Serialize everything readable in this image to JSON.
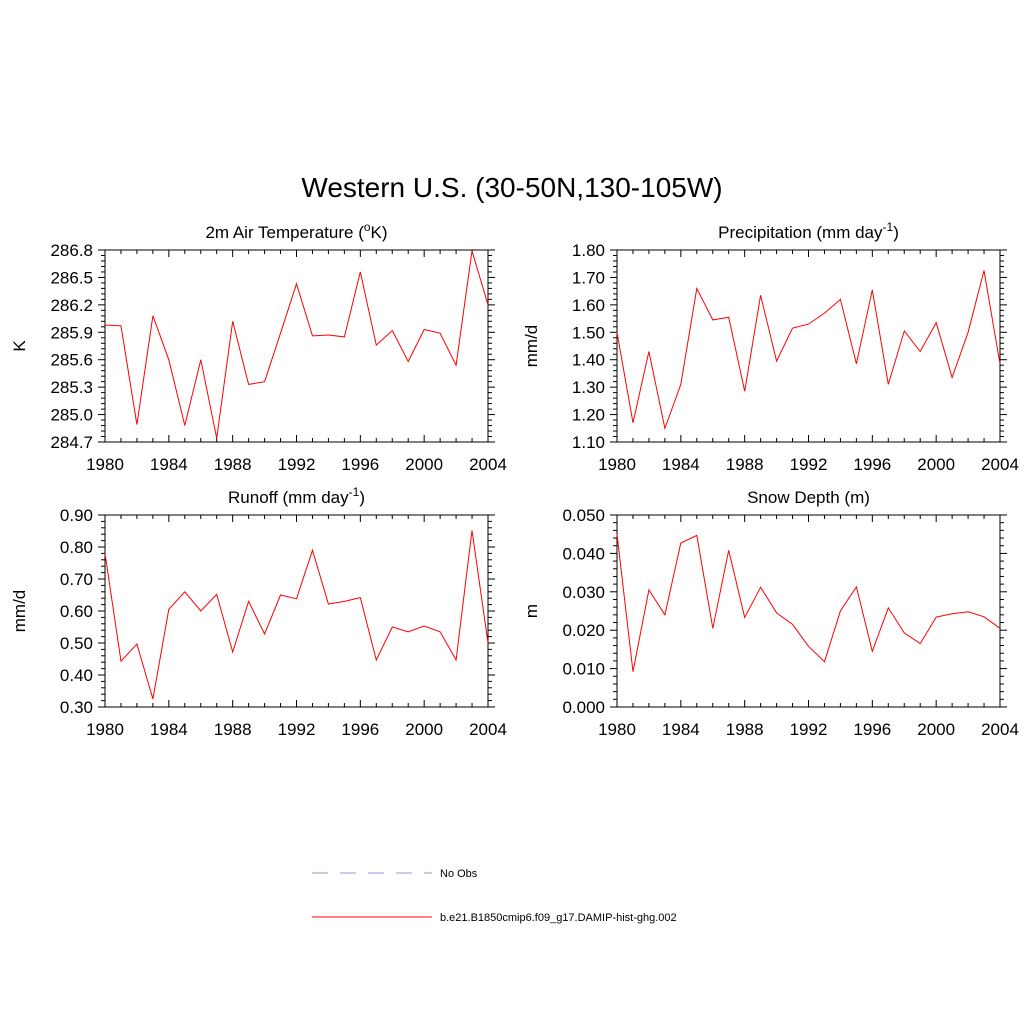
{
  "figure": {
    "title": "Western U.S. (30-50N,130-105W)"
  },
  "legend": [
    {
      "label": "No Obs",
      "color": "#aaaaee",
      "dash": "dashed"
    },
    {
      "label": "b.e21.B1850cmip6.f09_g17.DAMIP-hist-ghg.002",
      "color": "#ff0000",
      "dash": "solid"
    }
  ],
  "chart_data": [
    {
      "type": "line",
      "title_main": "2m Air Temperature (",
      "title_sup": "o",
      "title_rest": "K)",
      "ylabel": "K",
      "xlim": [
        1980,
        2004
      ],
      "ylim": [
        284.7,
        286.8
      ],
      "xticks": [
        "1980",
        "1984",
        "1988",
        "1992",
        "1996",
        "2000",
        "2004"
      ],
      "yticks": [
        "284.7",
        "285.0",
        "285.3",
        "285.6",
        "285.9",
        "286.2",
        "286.5",
        "286.8"
      ],
      "series": [
        {
          "color": "#ff0000",
          "x": [
            1980,
            1981,
            1982,
            1983,
            1984,
            1985,
            1986,
            1987,
            1988,
            1989,
            1990,
            1991,
            1992,
            1993,
            1994,
            1995,
            1996,
            1997,
            1998,
            1999,
            2000,
            2001,
            2002,
            2003,
            2004
          ],
          "y": [
            285.98,
            285.97,
            284.89,
            286.08,
            285.6,
            284.88,
            285.6,
            284.74,
            286.02,
            285.33,
            285.36,
            285.89,
            286.43,
            285.86,
            285.87,
            285.85,
            286.56,
            285.76,
            285.92,
            285.58,
            285.93,
            285.89,
            285.54,
            286.79,
            286.2
          ]
        }
      ]
    },
    {
      "type": "line",
      "title_main": "Precipitation (mm day",
      "title_sup": "-1",
      "title_rest": ")",
      "ylabel": "mm/d",
      "xlim": [
        1980,
        2004
      ],
      "ylim": [
        1.1,
        1.8
      ],
      "xticks": [
        "1980",
        "1984",
        "1988",
        "1992",
        "1996",
        "2000",
        "2004"
      ],
      "yticks": [
        "1.10",
        "1.20",
        "1.30",
        "1.40",
        "1.50",
        "1.60",
        "1.70",
        "1.80"
      ],
      "series": [
        {
          "color": "#ff0000",
          "x": [
            1980,
            1981,
            1982,
            1983,
            1984,
            1985,
            1986,
            1987,
            1988,
            1989,
            1990,
            1991,
            1992,
            1993,
            1994,
            1995,
            1996,
            1997,
            1998,
            1999,
            2000,
            2001,
            2002,
            2003,
            2004
          ],
          "y": [
            1.5,
            1.17,
            1.43,
            1.15,
            1.31,
            1.66,
            1.545,
            1.555,
            1.285,
            1.635,
            1.395,
            1.515,
            1.53,
            1.57,
            1.62,
            1.385,
            1.655,
            1.31,
            1.505,
            1.43,
            1.535,
            1.335,
            1.5,
            1.725,
            1.385
          ]
        }
      ]
    },
    {
      "type": "line",
      "title_main": "Runoff (mm day",
      "title_sup": "-1",
      "title_rest": ")",
      "ylabel": "mm/d",
      "xlim": [
        1980,
        2004
      ],
      "ylim": [
        0.3,
        0.9
      ],
      "xticks": [
        "1980",
        "1984",
        "1988",
        "1992",
        "1996",
        "2000",
        "2004"
      ],
      "yticks": [
        "0.30",
        "0.40",
        "0.50",
        "0.60",
        "0.70",
        "0.80",
        "0.90"
      ],
      "series": [
        {
          "color": "#ff0000",
          "x": [
            1980,
            1981,
            1982,
            1983,
            1984,
            1985,
            1986,
            1987,
            1988,
            1989,
            1990,
            1991,
            1992,
            1993,
            1994,
            1995,
            1996,
            1997,
            1998,
            1999,
            2000,
            2001,
            2002,
            2003,
            2004
          ],
          "y": [
            0.78,
            0.443,
            0.497,
            0.325,
            0.605,
            0.66,
            0.6,
            0.652,
            0.472,
            0.63,
            0.528,
            0.65,
            0.638,
            0.79,
            0.622,
            0.63,
            0.642,
            0.447,
            0.55,
            0.535,
            0.553,
            0.535,
            0.447,
            0.852,
            0.5
          ]
        }
      ]
    },
    {
      "type": "line",
      "title_main": "Snow Depth (m)",
      "title_sup": "",
      "title_rest": "",
      "ylabel": "m",
      "xlim": [
        1980,
        2004
      ],
      "ylim": [
        0.0,
        0.05
      ],
      "xticks": [
        "1980",
        "1984",
        "1988",
        "1992",
        "1996",
        "2000",
        "2004"
      ],
      "yticks": [
        "0.000",
        "0.010",
        "0.020",
        "0.030",
        "0.040",
        "0.050"
      ],
      "series": [
        {
          "color": "#ff0000",
          "x": [
            1980,
            1981,
            1982,
            1983,
            1984,
            1985,
            1986,
            1987,
            1988,
            1989,
            1990,
            1991,
            1992,
            1993,
            1994,
            1995,
            1996,
            1997,
            1998,
            1999,
            2000,
            2001,
            2002,
            2003,
            2004
          ],
          "y": [
            0.045,
            0.0092,
            0.0305,
            0.024,
            0.0427,
            0.0447,
            0.0205,
            0.0408,
            0.0233,
            0.0312,
            0.0245,
            0.0215,
            0.0158,
            0.0118,
            0.025,
            0.0313,
            0.0145,
            0.0258,
            0.0193,
            0.0165,
            0.0234,
            0.0243,
            0.0248,
            0.0235,
            0.0205
          ]
        }
      ]
    }
  ]
}
